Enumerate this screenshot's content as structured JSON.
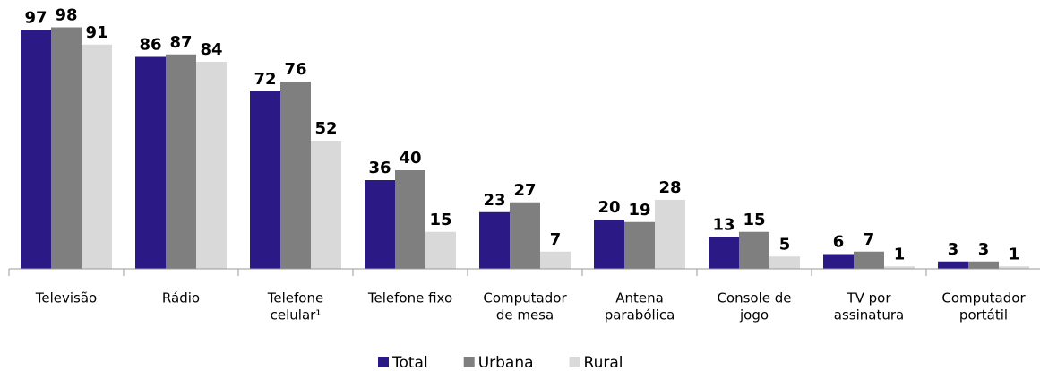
{
  "chart_data": {
    "type": "bar",
    "categories": [
      [
        "Televisão"
      ],
      [
        "Rádio"
      ],
      [
        "Telefone",
        "celular¹"
      ],
      [
        "Telefone fixo"
      ],
      [
        "Computador",
        "de mesa"
      ],
      [
        "Antena",
        "parabólica"
      ],
      [
        "Console de",
        "jogo"
      ],
      [
        "TV por",
        "assinatura"
      ],
      [
        "Computador",
        "portátil"
      ]
    ],
    "series": [
      {
        "name": "Total",
        "color": "#2b1a86",
        "values": [
          97,
          86,
          72,
          36,
          23,
          20,
          13,
          6,
          3
        ]
      },
      {
        "name": "Urbana",
        "color": "#7f7f7f",
        "values": [
          98,
          87,
          76,
          40,
          27,
          19,
          15,
          7,
          3
        ]
      },
      {
        "name": "Rural",
        "color": "#d9d9d9",
        "values": [
          91,
          84,
          52,
          15,
          7,
          28,
          5,
          1,
          1
        ]
      }
    ],
    "ylim": [
      0,
      100
    ],
    "legend": "bottom"
  }
}
